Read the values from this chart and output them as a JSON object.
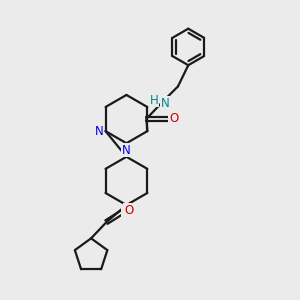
{
  "bg_color": "#ebebeb",
  "bond_color": "#1a1a1a",
  "nitrogen_color": "#0000ee",
  "oxygen_color": "#cc0000",
  "nh_color": "#008888",
  "line_width": 1.6,
  "font_size": 8.5,
  "fig_size": [
    3.0,
    3.0
  ],
  "dpi": 100,
  "xlim": [
    0,
    10
  ],
  "ylim": [
    0,
    10
  ]
}
